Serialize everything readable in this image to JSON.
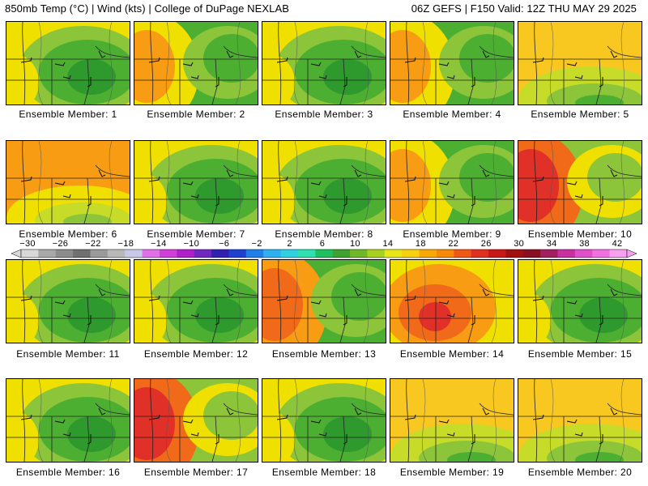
{
  "header": {
    "left": "850mb Temp (°C) | Wind (kts) | College of DuPage NEXLAB",
    "right": "06Z GEFS | F150 Valid: 12Z THU MAY 29 2025"
  },
  "colorbar": {
    "tick_labels": [
      "−30",
      "−26",
      "−22",
      "−18",
      "−14",
      "−10",
      "−6",
      "−2",
      "2",
      "6",
      "10",
      "14",
      "18",
      "22",
      "26",
      "30",
      "34",
      "38",
      "42"
    ],
    "colors": [
      "#d8d8d8",
      "#a8a8a8",
      "#8c8c8c",
      "#707070",
      "#9a9a9a",
      "#b8b8b8",
      "#c8c8e8",
      "#e070e8",
      "#d040d8",
      "#b020c8",
      "#7028c0",
      "#3020b0",
      "#2040d0",
      "#2080e8",
      "#30b0f0",
      "#30d0e0",
      "#30e0b0",
      "#20c060",
      "#40a030",
      "#70b828",
      "#a8d020",
      "#e8e818",
      "#f8d010",
      "#f8a808",
      "#f88808",
      "#f05818",
      "#e03020",
      "#c81818",
      "#a01010",
      "#881020",
      "#a02060",
      "#c830a0",
      "#e050c8",
      "#f070e0",
      "#f8a0f0"
    ]
  },
  "map_colors": {
    "green_dark": "#2e9a2e",
    "green": "#4caf32",
    "green_light": "#8cc43a",
    "yellow_green": "#c6dc28",
    "yellow": "#f0e000",
    "yellow_orange": "#f8c820",
    "orange": "#f89c14",
    "orange_red": "#f06a1a",
    "red": "#e03028"
  },
  "panels": [
    {
      "label": "Ensemble Member: 1",
      "style": "greenE"
    },
    {
      "label": "Ensemble Member: 2",
      "style": "orangeW"
    },
    {
      "label": "Ensemble Member: 3",
      "style": "greenE"
    },
    {
      "label": "Ensemble Member: 4",
      "style": "orangeW"
    },
    {
      "label": "Ensemble Member: 5",
      "style": "yellowN"
    },
    {
      "label": "Ensemble Member: 6",
      "style": "orangeN"
    },
    {
      "label": "Ensemble Member: 7",
      "style": "greenC"
    },
    {
      "label": "Ensemble Member: 8",
      "style": "greenE"
    },
    {
      "label": "Ensemble Member: 9",
      "style": "orangeW"
    },
    {
      "label": "Ensemble Member: 10",
      "style": "redW"
    },
    {
      "label": "Ensemble Member: 11",
      "style": "greenE"
    },
    {
      "label": "Ensemble Member: 12",
      "style": "greenC"
    },
    {
      "label": "Ensemble Member: 13",
      "style": "orangeSW"
    },
    {
      "label": "Ensemble Member: 14",
      "style": "redC"
    },
    {
      "label": "Ensemble Member: 15",
      "style": "greenE"
    },
    {
      "label": "Ensemble Member: 16",
      "style": "greenC"
    },
    {
      "label": "Ensemble Member: 17",
      "style": "redW"
    },
    {
      "label": "Ensemble Member: 18",
      "style": "greenE"
    },
    {
      "label": "Ensemble Member: 19",
      "style": "yellowN"
    },
    {
      "label": "Ensemble Member: 20",
      "style": "yellowN"
    }
  ]
}
